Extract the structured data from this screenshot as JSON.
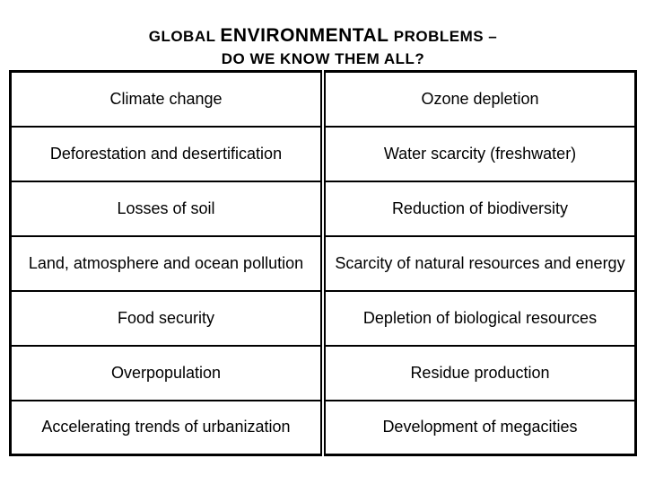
{
  "title": {
    "seg1": "GLOBAL ",
    "seg2": "ENVIRONMENTAL",
    "seg3": " PROBLEMS –",
    "line2": "DO WE KNOW THEM ALL?"
  },
  "table": {
    "type": "table",
    "columns": [
      "left",
      "right"
    ],
    "border_color": "#000000",
    "background_color": "#ffffff",
    "text_color": "#000000",
    "cell_fontsize": 18,
    "rows": [
      [
        "Climate change",
        "Ozone depletion"
      ],
      [
        "Deforestation and desertification",
        "Water scarcity (freshwater)"
      ],
      [
        "Losses of soil",
        "Reduction of biodiversity"
      ],
      [
        "Land, atmosphere and ocean pollution",
        "Scarcity of natural resources and energy"
      ],
      [
        "Food security",
        "Depletion of biological resources"
      ],
      [
        "Overpopulation",
        "Residue production"
      ],
      [
        "Accelerating trends of urbanization",
        "Development of megacities"
      ]
    ]
  }
}
